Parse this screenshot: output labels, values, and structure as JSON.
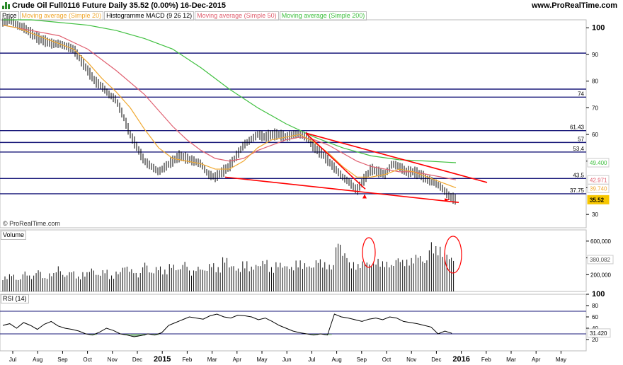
{
  "header": {
    "title": "Crude Oil Full0116 Future   Daily   35.52 (0.00%)   16-Dec-2015",
    "site": "www.ProRealTime.com"
  },
  "legend": [
    {
      "label": "Price",
      "color": "#000000"
    },
    {
      "label": "Moving average (Simple 20)",
      "color": "#f0a830"
    },
    {
      "label": "Histogramme MACD (9 26 12)",
      "color": "#000000"
    },
    {
      "label": "Moving average (Simple 50)",
      "color": "#e06070"
    },
    {
      "label": "Moving average (Simple 200)",
      "color": "#40c040"
    }
  ],
  "copyright": "© ProRealTime.com",
  "volume_label": "Volume",
  "rsi_label": "RSI (14)",
  "colors": {
    "hline": "#1a1a7a",
    "trend": "#ff0000",
    "ma20": "#f0a830",
    "ma50": "#e06070",
    "ma200": "#40c040",
    "current": "#f7c600"
  },
  "chart_data": [
    {
      "type": "line",
      "panel": "price",
      "x_labels": [
        "Jul",
        "Aug",
        "Sep",
        "Oct",
        "Nov",
        "Dec",
        "2015",
        "Feb",
        "Mar",
        "Apr",
        "May",
        "Jun",
        "Jul",
        "Aug",
        "Sep",
        "Oct",
        "Nov",
        "Dec",
        "2016",
        "Feb",
        "Mar",
        "Apr",
        "May"
      ],
      "y_ticks": [
        30,
        40,
        50,
        60,
        70,
        80,
        90,
        100
      ],
      "ylim": [
        25,
        103
      ],
      "horizontal_levels": [
        {
          "value": 90.5,
          "label": ""
        },
        {
          "value": 77,
          "label": ""
        },
        {
          "value": 74,
          "label": "74"
        },
        {
          "value": 61.43,
          "label": "61.43"
        },
        {
          "value": 57,
          "label": "57"
        },
        {
          "value": 53.4,
          "label": "53.4"
        },
        {
          "value": 43.5,
          "label": "43.5"
        },
        {
          "value": 37.75,
          "label": "37.75"
        }
      ],
      "value_tags": [
        {
          "value": 49.4,
          "label": "49.400",
          "color": "#40c040"
        },
        {
          "value": 42.971,
          "label": "42.971",
          "color": "#e06070"
        },
        {
          "value": 39.74,
          "label": "39.740",
          "color": "#f0a830"
        },
        {
          "value": 35.52,
          "label": "35.52",
          "color": "#000000"
        }
      ],
      "price_path": [
        [
          0,
          102
        ],
        [
          10,
          103
        ],
        [
          20,
          101
        ],
        [
          30,
          100
        ],
        [
          40,
          98
        ],
        [
          50,
          96
        ],
        [
          60,
          95
        ],
        [
          70,
          94
        ],
        [
          80,
          94
        ],
        [
          90,
          93
        ],
        [
          100,
          92
        ],
        [
          110,
          88
        ],
        [
          120,
          84
        ],
        [
          130,
          80
        ],
        [
          140,
          78
        ],
        [
          150,
          75
        ],
        [
          160,
          73
        ],
        [
          170,
          67
        ],
        [
          180,
          60
        ],
        [
          190,
          55
        ],
        [
          200,
          50
        ],
        [
          210,
          48
        ],
        [
          220,
          46
        ],
        [
          230,
          48
        ],
        [
          240,
          50
        ],
        [
          250,
          52
        ],
        [
          260,
          51
        ],
        [
          270,
          50
        ],
        [
          280,
          49
        ],
        [
          290,
          45
        ],
        [
          300,
          44
        ],
        [
          310,
          46
        ],
        [
          320,
          48
        ],
        [
          330,
          52
        ],
        [
          340,
          56
        ],
        [
          350,
          58
        ],
        [
          360,
          60
        ],
        [
          370,
          59
        ],
        [
          380,
          60
        ],
        [
          390,
          60
        ],
        [
          400,
          59
        ],
        [
          410,
          60
        ],
        [
          420,
          60
        ],
        [
          430,
          59
        ],
        [
          440,
          55
        ],
        [
          450,
          53
        ],
        [
          460,
          50
        ],
        [
          470,
          47
        ],
        [
          480,
          44
        ],
        [
          490,
          42
        ],
        [
          500,
          39
        ],
        [
          510,
          43
        ],
        [
          520,
          47
        ],
        [
          530,
          46
        ],
        [
          540,
          45
        ],
        [
          550,
          49
        ],
        [
          560,
          48
        ],
        [
          570,
          46
        ],
        [
          580,
          46
        ],
        [
          590,
          45
        ],
        [
          600,
          43
        ],
        [
          610,
          42
        ],
        [
          620,
          40
        ],
        [
          630,
          37
        ],
        [
          640,
          35.5
        ]
      ],
      "ma20_path": [
        [
          0,
          101
        ],
        [
          20,
          100
        ],
        [
          40,
          98
        ],
        [
          60,
          96
        ],
        [
          80,
          94
        ],
        [
          100,
          92
        ],
        [
          120,
          87
        ],
        [
          140,
          81
        ],
        [
          160,
          76
        ],
        [
          180,
          70
        ],
        [
          200,
          62
        ],
        [
          220,
          55
        ],
        [
          240,
          51
        ],
        [
          260,
          50
        ],
        [
          280,
          49
        ],
        [
          300,
          47
        ],
        [
          320,
          47
        ],
        [
          340,
          50
        ],
        [
          360,
          55
        ],
        [
          380,
          58
        ],
        [
          400,
          59
        ],
        [
          420,
          60
        ],
        [
          440,
          57
        ],
        [
          460,
          53
        ],
        [
          480,
          48
        ],
        [
          500,
          44
        ],
        [
          520,
          44
        ],
        [
          540,
          45
        ],
        [
          560,
          47
        ],
        [
          580,
          46
        ],
        [
          600,
          44
        ],
        [
          620,
          42
        ],
        [
          640,
          40
        ]
      ],
      "ma50_path": [
        [
          0,
          101
        ],
        [
          40,
          99
        ],
        [
          80,
          97
        ],
        [
          120,
          92
        ],
        [
          160,
          84
        ],
        [
          200,
          75
        ],
        [
          240,
          63
        ],
        [
          260,
          58
        ],
        [
          280,
          54
        ],
        [
          300,
          51
        ],
        [
          320,
          50
        ],
        [
          340,
          51
        ],
        [
          360,
          54
        ],
        [
          380,
          56
        ],
        [
          400,
          58
        ],
        [
          420,
          59
        ],
        [
          440,
          58
        ],
        [
          460,
          56
        ],
        [
          480,
          53
        ],
        [
          500,
          50
        ],
        [
          520,
          48
        ],
        [
          540,
          47
        ],
        [
          560,
          46
        ],
        [
          580,
          46
        ],
        [
          600,
          45
        ],
        [
          620,
          44
        ],
        [
          640,
          43
        ]
      ],
      "ma200_path": [
        [
          0,
          103
        ],
        [
          40,
          103
        ],
        [
          80,
          102
        ],
        [
          120,
          101
        ],
        [
          160,
          99
        ],
        [
          200,
          96
        ],
        [
          240,
          92
        ],
        [
          280,
          85
        ],
        [
          320,
          77
        ],
        [
          360,
          70
        ],
        [
          400,
          64
        ],
        [
          440,
          59
        ],
        [
          480,
          55
        ],
        [
          520,
          52
        ],
        [
          560,
          50.5
        ],
        [
          600,
          50
        ],
        [
          640,
          49.4
        ]
      ],
      "trendlines": [
        {
          "from": [
            318,
            44
          ],
          "to": [
            648,
            34.5
          ]
        },
        {
          "from": [
            432,
            60.5
          ],
          "to": [
            688,
            42
          ]
        },
        {
          "from": [
            432,
            60.5
          ],
          "to": [
            516,
            39.5
          ]
        }
      ]
    },
    {
      "type": "bar",
      "panel": "volume",
      "y_ticks": [
        "200,000",
        "400,000",
        "600,000"
      ],
      "ylim": [
        0,
        700000
      ],
      "current_label": "380,082",
      "values": [
        180000,
        210000,
        150000,
        240000,
        190000,
        260000,
        170000,
        220000,
        300000,
        200000,
        250000,
        180000,
        230000,
        280000,
        210000,
        260000,
        190000,
        240000,
        310000,
        270000,
        220000,
        350000,
        240000,
        300000,
        260000,
        330000,
        280000,
        360000,
        250000,
        300000,
        270000,
        340000,
        290000,
        410000,
        320000,
        280000,
        360000,
        300000,
        330000,
        380000,
        290000,
        350000,
        320000,
        300000,
        370000,
        340000,
        310000,
        390000,
        350000,
        320000,
        600000,
        470000,
        350000,
        330000,
        370000,
        340000,
        390000,
        360000,
        330000,
        410000,
        380000,
        400000,
        450000,
        380000,
        590000,
        540000,
        480000,
        420000
      ]
    },
    {
      "type": "line",
      "panel": "rsi",
      "y_ticks": [
        20,
        40,
        60,
        80,
        100
      ],
      "ylim": [
        0,
        100
      ],
      "levels": [
        70,
        30
      ],
      "current_label": "31.420",
      "values": [
        45,
        48,
        40,
        50,
        45,
        38,
        47,
        52,
        44,
        40,
        38,
        35,
        30,
        28,
        33,
        40,
        36,
        30,
        28,
        25,
        27,
        30,
        28,
        32,
        45,
        50,
        55,
        60,
        58,
        56,
        62,
        65,
        60,
        58,
        63,
        62,
        60,
        55,
        58,
        52,
        45,
        40,
        35,
        32,
        30,
        28,
        30,
        28,
        65,
        60,
        58,
        55,
        52,
        56,
        58,
        55,
        60,
        58,
        52,
        50,
        48,
        45,
        42,
        30,
        35,
        31
      ]
    }
  ]
}
